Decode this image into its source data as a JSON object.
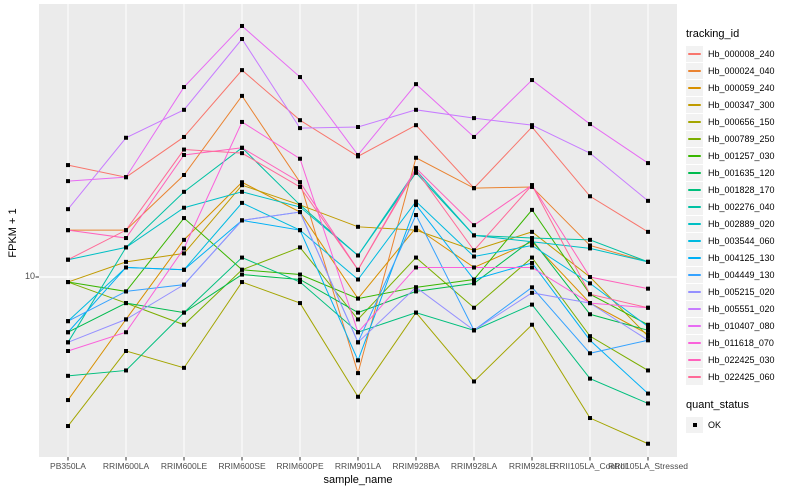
{
  "figure": {
    "bg": "#FFFFFF",
    "panel_bg": "#EBEBEB",
    "grid_color": "#FFFFFF",
    "tick_color": "#333333",
    "axis_text_color": "#4D4D4D",
    "marker_color": "#000000"
  },
  "axes": {
    "x_title": "sample_name",
    "y_title": "FPKM + 1",
    "y_tick_labels": [
      "10"
    ],
    "y_tick_values": [
      10
    ]
  },
  "legend": {
    "tracking_title": "tracking_id",
    "quant_title": "quant_status",
    "quant_items": [
      {
        "label": "OK",
        "marker": "black-square"
      }
    ]
  },
  "chart_data": {
    "type": "line",
    "title": "",
    "xlabel": "sample_name",
    "ylabel": "FPKM + 1",
    "yscale": "log10",
    "ylim": [
      2.3,
      86
    ],
    "grid": "white major gridline at y=10 and vertical line per category on gray panel",
    "legend_position": "right",
    "marker": "black-square (quant_status OK)",
    "x_categories": [
      "PB350LA",
      "RRIM600LA",
      "RRIM600LE",
      "RRIM600SE",
      "RRIM600PE",
      "RRIM901LA",
      "RRIM928BA",
      "RRIM928LA",
      "RRIM928LE",
      "RRII105LA_Control",
      "RRII105LA_Stressed"
    ],
    "series": [
      {
        "name": "Hb_000008_240",
        "color": "#F8766D",
        "values": [
          24.7,
          22.4,
          31.0,
          53.2,
          35.5,
          26.5,
          34.1,
          20.5,
          33.6,
          19.2,
          14.4
        ]
      },
      {
        "name": "Hb_000024_040",
        "color": "#EA8331",
        "values": [
          14.6,
          14.6,
          22.8,
          43.2,
          21.5,
          4.6,
          26.2,
          20.5,
          20.7,
          12.9,
          11.3
        ]
      },
      {
        "name": "Hb_000059_240",
        "color": "#D89000",
        "values": [
          3.7,
          7.1,
          13.5,
          21.5,
          16.9,
          8.4,
          14.9,
          10.8,
          13.3,
          8.1,
          6.3
        ]
      },
      {
        "name": "Hb_000347_300",
        "color": "#C09B00",
        "values": [
          9.6,
          11.3,
          12.1,
          21.0,
          17.9,
          15.0,
          14.6,
          12.4,
          14.4,
          10.0,
          6.2
        ]
      },
      {
        "name": "Hb_000656_150",
        "color": "#A3A500",
        "values": [
          3.0,
          5.5,
          4.8,
          9.6,
          8.1,
          3.8,
          7.5,
          4.3,
          6.8,
          3.2,
          2.6
        ]
      },
      {
        "name": "Hb_000789_250",
        "color": "#7CAE00",
        "values": [
          9.6,
          8.1,
          6.8,
          10.6,
          12.7,
          7.1,
          11.7,
          7.8,
          11.7,
          6.2,
          4.7
        ]
      },
      {
        "name": "Hb_001257_030",
        "color": "#39B600",
        "values": [
          9.6,
          8.9,
          16.1,
          10.6,
          10.2,
          8.4,
          9.2,
          9.8,
          17.2,
          8.7,
          6.8
        ]
      },
      {
        "name": "Hb_001635_120",
        "color": "#00BB4E",
        "values": [
          6.4,
          8.1,
          7.5,
          10.2,
          9.8,
          7.5,
          8.9,
          9.5,
          13.5,
          7.4,
          6.5
        ]
      },
      {
        "name": "Hb_001828_170",
        "color": "#00BF7D",
        "values": [
          4.5,
          4.7,
          7.5,
          11.7,
          9.6,
          6.4,
          7.5,
          6.5,
          8.0,
          4.4,
          3.6
        ]
      },
      {
        "name": "Hb_002276_040",
        "color": "#00C1A3",
        "values": [
          5.9,
          12.7,
          19.9,
          28.4,
          17.9,
          11.9,
          23.2,
          14.0,
          13.7,
          13.5,
          11.3
        ]
      },
      {
        "name": "Hb_002889_020",
        "color": "#00BFC4",
        "values": [
          11.5,
          12.7,
          17.5,
          19.9,
          17.6,
          11.9,
          23.7,
          14.0,
          13.3,
          12.6,
          11.3
        ]
      },
      {
        "name": "Hb_003544_060",
        "color": "#00BAE0",
        "values": [
          7.0,
          10.8,
          10.6,
          18.2,
          14.6,
          9.8,
          18.4,
          11.8,
          12.9,
          9.5,
          6.7
        ]
      },
      {
        "name": "Hb_004125_130",
        "color": "#00B0F6",
        "values": [
          6.4,
          10.8,
          10.6,
          15.8,
          14.6,
          5.1,
          17.9,
          9.8,
          11.2,
          6.0,
          3.9
        ]
      },
      {
        "name": "Hb_004449_130",
        "color": "#35A2FF",
        "values": [
          7.0,
          8.9,
          9.4,
          15.8,
          16.9,
          5.9,
          16.5,
          6.5,
          9.2,
          5.4,
          6.0
        ]
      },
      {
        "name": "Hb_005215_020",
        "color": "#9590FF",
        "values": [
          5.9,
          7.1,
          9.4,
          15.8,
          16.9,
          5.9,
          9.2,
          6.5,
          8.8,
          8.1,
          6.0
        ]
      },
      {
        "name": "Hb_005551_020",
        "color": "#C77CFF",
        "values": [
          17.3,
          30.8,
          38.6,
          68.4,
          33.3,
          33.6,
          38.6,
          36.1,
          34.1,
          27.2,
          18.5
        ]
      },
      {
        "name": "Hb_010407_080",
        "color": "#E76BF3",
        "values": [
          21.7,
          22.4,
          46.4,
          76.0,
          50.3,
          26.8,
          47.5,
          31.0,
          49.1,
          34.4,
          25.1
        ]
      },
      {
        "name": "Hb_011618_070",
        "color": "#FA62DB",
        "values": [
          5.5,
          6.4,
          12.6,
          35.0,
          26.0,
          6.4,
          10.8,
          10.8,
          10.8,
          8.1,
          7.8
        ]
      },
      {
        "name": "Hb_022425_030",
        "color": "#FF62BC",
        "values": [
          14.6,
          13.7,
          26.8,
          28.4,
          21.5,
          10.6,
          24.1,
          15.2,
          21.0,
          10.0,
          9.1
        ]
      },
      {
        "name": "Hb_022425_060",
        "color": "#FF6A98",
        "values": [
          11.5,
          14.6,
          28.0,
          27.2,
          20.7,
          10.6,
          23.7,
          12.4,
          21.0,
          8.7,
          7.8
        ]
      }
    ]
  }
}
